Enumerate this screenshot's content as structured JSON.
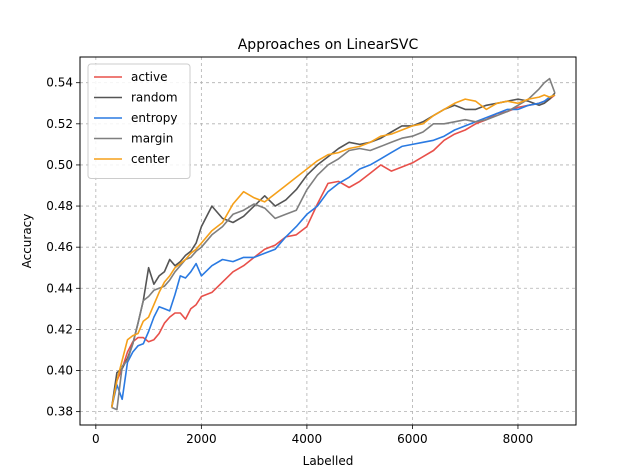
{
  "chart_data": {
    "type": "line",
    "title": "Approaches on LinearSVC",
    "xlabel": "Labelled",
    "ylabel": "Accuracy",
    "xlim": [
      -300,
      9100
    ],
    "ylim": [
      0.3735,
      0.5525
    ],
    "xticks": [
      0,
      2000,
      4000,
      6000,
      8000
    ],
    "xtick_labels": [
      "0",
      "2000",
      "4000",
      "6000",
      "8000"
    ],
    "yticks": [
      0.38,
      0.4,
      0.42,
      0.44,
      0.46,
      0.48,
      0.5,
      0.52,
      0.54
    ],
    "ytick_labels": [
      "0.38",
      "0.40",
      "0.42",
      "0.44",
      "0.46",
      "0.48",
      "0.50",
      "0.52",
      "0.54"
    ],
    "grid": true,
    "legend_position": "top-left",
    "x": [
      300,
      400,
      500,
      600,
      700,
      800,
      900,
      1000,
      1100,
      1200,
      1300,
      1400,
      1500,
      1600,
      1700,
      1800,
      1900,
      2000,
      2200,
      2400,
      2600,
      2800,
      3000,
      3200,
      3400,
      3600,
      3800,
      4000,
      4200,
      4400,
      4600,
      4800,
      5000,
      5200,
      5400,
      5600,
      5800,
      6000,
      6200,
      6400,
      6600,
      6800,
      7000,
      7200,
      7400,
      7600,
      7800,
      8000,
      8200,
      8400,
      8500,
      8600,
      8700
    ],
    "series": [
      {
        "name": "active",
        "color": "#e8504a",
        "values": [
          0.382,
          0.395,
          0.401,
          0.409,
          0.414,
          0.416,
          0.416,
          0.414,
          0.415,
          0.418,
          0.423,
          0.426,
          0.428,
          0.428,
          0.425,
          0.43,
          0.432,
          0.436,
          0.438,
          0.443,
          0.448,
          0.451,
          0.455,
          0.459,
          0.461,
          0.465,
          0.466,
          0.47,
          0.481,
          0.491,
          0.492,
          0.489,
          0.492,
          0.496,
          0.5,
          0.497,
          0.499,
          0.501,
          0.504,
          0.507,
          0.512,
          0.515,
          0.517,
          0.52,
          0.522,
          0.525,
          0.526,
          0.528,
          0.529,
          0.53,
          0.531,
          0.532,
          0.534
        ]
      },
      {
        "name": "random",
        "color": "#555555",
        "values": [
          0.382,
          0.399,
          0.401,
          0.406,
          0.413,
          0.423,
          0.434,
          0.45,
          0.442,
          0.446,
          0.448,
          0.454,
          0.451,
          0.453,
          0.456,
          0.458,
          0.462,
          0.47,
          0.48,
          0.474,
          0.472,
          0.475,
          0.48,
          0.485,
          0.48,
          0.483,
          0.488,
          0.495,
          0.5,
          0.504,
          0.508,
          0.511,
          0.51,
          0.511,
          0.513,
          0.516,
          0.519,
          0.519,
          0.521,
          0.524,
          0.527,
          0.529,
          0.527,
          0.527,
          0.529,
          0.53,
          0.531,
          0.532,
          0.531,
          0.529,
          0.53,
          0.532,
          0.535
        ]
      },
      {
        "name": "entropy",
        "color": "#2a7ae2",
        "values": [
          0.382,
          0.393,
          0.386,
          0.404,
          0.409,
          0.412,
          0.413,
          0.419,
          0.426,
          0.431,
          0.43,
          0.429,
          0.437,
          0.446,
          0.445,
          0.448,
          0.452,
          0.446,
          0.451,
          0.454,
          0.453,
          0.455,
          0.455,
          0.457,
          0.459,
          0.465,
          0.47,
          0.476,
          0.48,
          0.487,
          0.491,
          0.494,
          0.498,
          0.5,
          0.503,
          0.506,
          0.509,
          0.51,
          0.511,
          0.512,
          0.514,
          0.517,
          0.519,
          0.521,
          0.523,
          0.525,
          0.527,
          0.527,
          0.529,
          0.53,
          0.531,
          0.533,
          0.534
        ]
      },
      {
        "name": "margin",
        "color": "#7f7f7f",
        "values": [
          0.382,
          0.381,
          0.402,
          0.405,
          0.413,
          0.423,
          0.434,
          0.436,
          0.439,
          0.44,
          0.441,
          0.444,
          0.448,
          0.451,
          0.454,
          0.455,
          0.458,
          0.46,
          0.466,
          0.47,
          0.476,
          0.478,
          0.481,
          0.479,
          0.474,
          0.476,
          0.478,
          0.488,
          0.495,
          0.5,
          0.503,
          0.507,
          0.508,
          0.507,
          0.509,
          0.511,
          0.513,
          0.514,
          0.516,
          0.52,
          0.52,
          0.521,
          0.522,
          0.521,
          0.522,
          0.524,
          0.526,
          0.529,
          0.532,
          0.537,
          0.54,
          0.542,
          0.535
        ]
      },
      {
        "name": "center",
        "color": "#f5a01a",
        "values": [
          0.382,
          0.395,
          0.405,
          0.415,
          0.417,
          0.418,
          0.424,
          0.426,
          0.432,
          0.438,
          0.443,
          0.446,
          0.45,
          0.452,
          0.454,
          0.457,
          0.459,
          0.462,
          0.468,
          0.472,
          0.481,
          0.487,
          0.484,
          0.482,
          0.486,
          0.49,
          0.494,
          0.498,
          0.502,
          0.505,
          0.506,
          0.508,
          0.509,
          0.511,
          0.514,
          0.515,
          0.517,
          0.519,
          0.52,
          0.524,
          0.527,
          0.53,
          0.532,
          0.531,
          0.527,
          0.53,
          0.531,
          0.53,
          0.532,
          0.533,
          0.534,
          0.533,
          0.534
        ]
      }
    ]
  }
}
